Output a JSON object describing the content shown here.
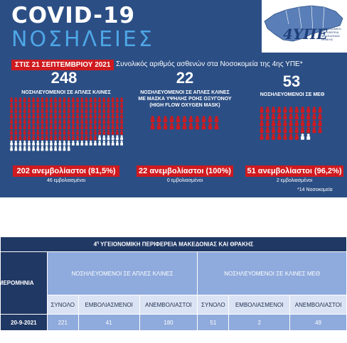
{
  "title": "COVID-19",
  "subtitle_big": "ΝΟΣΗΛΕΙΕΣ",
  "logo_text": "4ΥΠΕ",
  "logo_lines": [
    "ΥΓΕΙΟΝΟΜΙΚΗ",
    "ΠΕΡΙΦΕΡΕΙΑ",
    "ΜΑΚΕΔΟΝΙΑΣ",
    "ΘΡΑΚΗΣ"
  ],
  "date_label": "ΣΤΙΣ 21 ΣΕΠΤΕΜΒΡΙΟΥ 2021",
  "summary": "Συνολικός αριθμός ασθενών στα Νοσοκομεία της 4ης ΥΠΕ*",
  "groups": [
    {
      "number": "248",
      "category_lines": [
        "ΝΟΣΗΛΕΥΟΜΕΝΟΙ ΣΕ ΑΠΛΕΣ ΚΛΙΝΕΣ"
      ],
      "unvaccinated": "202 ανεμβολίαστοι (81,5%)",
      "vaccinated": "46 εμβολιασμένοι",
      "total": 248,
      "unvaccinated_count": 202
    },
    {
      "number": "22",
      "category_lines": [
        "ΝΟΣΗΛΕΥΟΜΕΝΟΙ ΣΕ ΑΠΛΕΣ ΚΛΙΝΕΣ",
        "ΜΕ ΜΑΣΚΑ ΥΨΗΛΗΣ ΡΟΗΣ ΟΞΥΓΟΝΟΥ",
        "(HIGH FLOW OXYGEN MASK)"
      ],
      "unvaccinated": "22 ανεμβολίαστοι (100%)",
      "vaccinated": "0 εμβολιασμένοι",
      "total": 22,
      "unvaccinated_count": 22
    },
    {
      "number": "53",
      "category_lines": [
        "ΝΟΣΗΛΕΥΟΜΕΝΟΙ ΣΕ ΜΕΘ"
      ],
      "unvaccinated": "51 ανεμβολίαστοι (96,2%)",
      "vaccinated": "2 εμβολιασμένοι",
      "total": 53,
      "unvaccinated_count": 51
    }
  ],
  "footnote": "*14 Νοσοκομεία",
  "colors": {
    "banner": "#2b4e84",
    "red": "#cf1a1f",
    "accent": "#4ea6e6",
    "table_dark": "#203864",
    "table_mid": "#8faadc",
    "table_light": "#dae3f3"
  },
  "table": {
    "title_sup": "η",
    "title_num": "4",
    "title_rest": " ΥΓΕΙΟΝΟΜΙΚΗ ΠΕΡΙΦΕΡΕΙΑ ΜΑΚΕΔΟΝΙΑΣ ΚΑΙ ΘΡΑΚΗΣ",
    "date_header": "ΗΜΕΡΟΜΗΝΙΑ",
    "group_headers": [
      "ΝΟΣΗΛΕΥΟΜΕΝΟΙ ΣΕ ΑΠΛΕΣ ΚΛΙΝΕΣ",
      "ΝΟΣΗΛΕΥΟΜΕΝΟΙ ΣΕ ΚΛΙΝΕΣ ΜΕΘ"
    ],
    "sub_headers": [
      "ΣΥΝΟΛΟ",
      "ΕΜΒΟΛΙΑΣΜΕΝΟΙ",
      "ΑΝΕΜΒΟΛΙΑΣΤΟΙ",
      "ΣΥΝΟΛΟ",
      "ΕΜΒΟΛΙΑΣΜΕΝΟΙ",
      "ΑΝΕΜΒΟΛΙΑΣΤΟΙ"
    ],
    "rows": [
      {
        "date": "20-9-2021",
        "values": [
          "221",
          "41",
          "180",
          "51",
          "2",
          "49"
        ]
      }
    ]
  }
}
